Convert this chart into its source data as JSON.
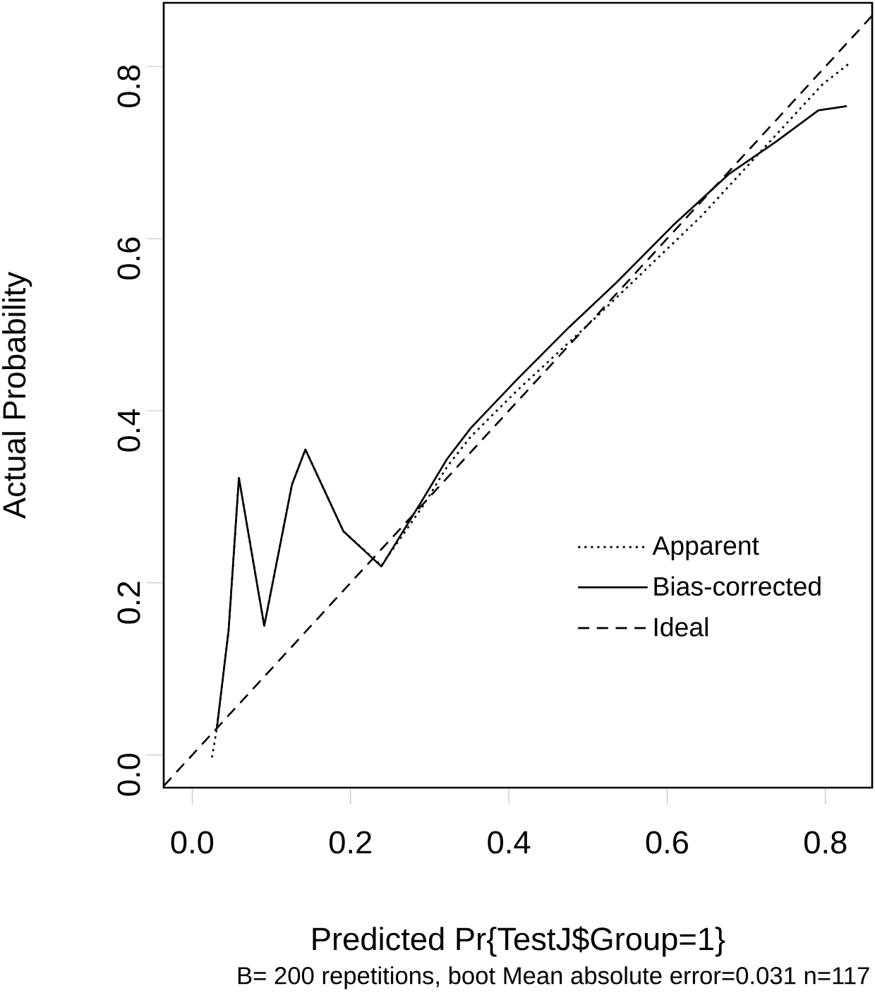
{
  "chart_data": {
    "type": "line",
    "xlabel": "Predicted Pr{TestJ$Group=1}",
    "ylabel": "Actual Probability",
    "annotations": [
      "B= 200 repetitions, boot  Mean absolute error=0.031 n=117"
    ],
    "xlim": [
      -0.036,
      0.859
    ],
    "ylim": [
      -0.038,
      0.874
    ],
    "xticks": [
      {
        "value": 0,
        "label": "0.0"
      },
      {
        "value": 0.2,
        "label": "0.2"
      },
      {
        "value": 0.4,
        "label": "0.4"
      },
      {
        "value": 0.6,
        "label": "0.6"
      },
      {
        "value": 0.8,
        "label": "0.8"
      }
    ],
    "yticks": [
      {
        "value": 0,
        "label": "0.0"
      },
      {
        "value": 0.2,
        "label": "0.2"
      },
      {
        "value": 0.4,
        "label": "0.4"
      },
      {
        "value": 0.6,
        "label": "0.6"
      },
      {
        "value": 0.8,
        "label": "0.8"
      }
    ],
    "legend": "bottom right",
    "series": [
      {
        "name": "Apparent",
        "color": "#000000",
        "line_style": "dotted",
        "x": [
          0.025,
          0.031,
          0.046,
          0.059,
          0.091,
          0.126,
          0.143,
          0.191,
          0.239,
          0.292,
          0.322,
          0.352,
          0.411,
          0.506,
          0.643,
          0.796,
          0.832
        ],
        "values": [
          -0.003,
          0.03,
          0.145,
          0.322,
          0.15,
          0.314,
          0.355,
          0.26,
          0.22,
          0.29,
          0.335,
          0.37,
          0.424,
          0.505,
          0.626,
          0.779,
          0.805
        ]
      },
      {
        "name": "Bias-corrected",
        "color": "#000000",
        "line_style": "solid",
        "x": [
          0.031,
          0.046,
          0.059,
          0.091,
          0.126,
          0.143,
          0.191,
          0.239,
          0.292,
          0.322,
          0.352,
          0.411,
          0.476,
          0.536,
          0.607,
          0.678,
          0.738,
          0.791,
          0.827
        ],
        "values": [
          0.03,
          0.145,
          0.322,
          0.15,
          0.314,
          0.355,
          0.26,
          0.219,
          0.298,
          0.344,
          0.38,
          0.437,
          0.497,
          0.549,
          0.615,
          0.675,
          0.713,
          0.749,
          0.754
        ]
      },
      {
        "name": "Ideal",
        "color": "#000000",
        "line_style": "dashed",
        "x": [
          -0.036,
          0.859
        ],
        "values": [
          -0.036,
          0.859
        ]
      }
    ]
  }
}
